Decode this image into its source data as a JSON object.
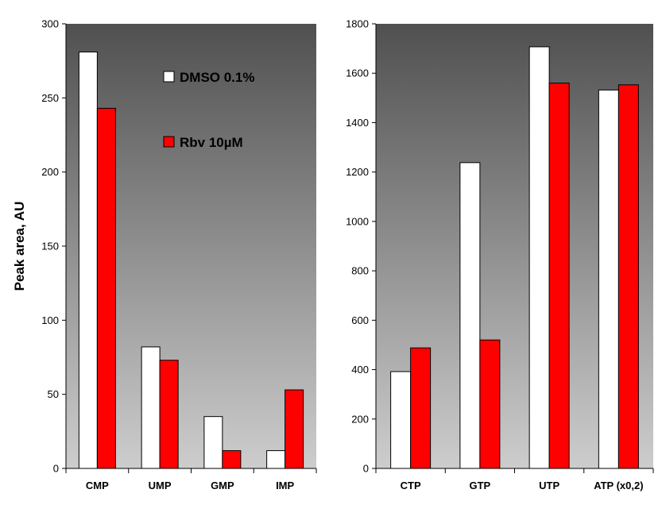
{
  "chart_data": [
    {
      "type": "bar",
      "ylabel": "Peak area, AU",
      "ylim": [
        0,
        300
      ],
      "yticks": [
        0,
        50,
        100,
        150,
        200,
        250,
        300
      ],
      "categories": [
        "CMP",
        "UMP",
        "GMP",
        "IMP"
      ],
      "series": [
        {
          "name": "DMSO 0.1%",
          "color": "#ffffff",
          "values": [
            281,
            82,
            35,
            12
          ]
        },
        {
          "name": "Rbv 10µM",
          "color": "#ff0000",
          "values": [
            243,
            73,
            12,
            53
          ]
        }
      ],
      "background": "gradient dark-gray to light-gray",
      "legend": "top-right"
    },
    {
      "type": "bar",
      "ylabel": "",
      "ylim": [
        0,
        1800
      ],
      "yticks": [
        0,
        200,
        400,
        600,
        800,
        1000,
        1200,
        1400,
        1600,
        1800
      ],
      "categories": [
        "CTP",
        "GTP",
        "UTP",
        "ATP (x0,2)"
      ],
      "series": [
        {
          "name": "DMSO 0.1%",
          "color": "#ffffff",
          "values": [
            392,
            1238,
            1707,
            1532
          ]
        },
        {
          "name": "Rbv 10µM",
          "color": "#ff0000",
          "values": [
            488,
            520,
            1560,
            1553
          ]
        }
      ],
      "background": "gradient dark-gray to light-gray"
    }
  ]
}
